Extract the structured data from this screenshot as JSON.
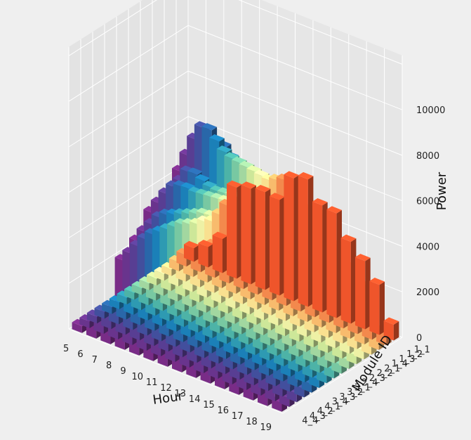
{
  "chart_data": {
    "type": "bar3d",
    "title": "",
    "xlabel": "Hour",
    "ylabel": "Module ID",
    "zlabel": "Power",
    "hours": [
      "5",
      "6",
      "7",
      "8",
      "9",
      "10",
      "11",
      "12",
      "13",
      "14",
      "15",
      "16",
      "17",
      "18",
      "19"
    ],
    "modules": [
      "1_1",
      "1_2",
      "1_3",
      "1_4",
      "2_1",
      "2_2",
      "2_3",
      "2_4",
      "3_1",
      "3_2",
      "3_3",
      "3_4",
      "4_1",
      "4_2",
      "4_3",
      "4_4"
    ],
    "zlim": [
      0,
      10500
    ],
    "zticks": [
      "0",
      "2000",
      "4000",
      "6000",
      "8000",
      "10000"
    ],
    "grid": true,
    "colormap": [
      "#f4572c",
      "#f88c4f",
      "#fdbf6f",
      "#fee593",
      "#f3f6a8",
      "#d1ec9c",
      "#a5dba3",
      "#7acca5",
      "#4fb7aa",
      "#2f9db6",
      "#1c83bc",
      "#2a69ac",
      "#4351a0",
      "#5a3f96",
      "#6b3590",
      "#7b2d8a"
    ],
    "values": [
      [
        600,
        900,
        1500,
        4000,
        4200,
        4300,
        4200,
        5400,
        5600,
        4700,
        4600,
        3600,
        3000,
        2200,
        700
      ],
      [
        500,
        800,
        1400,
        3400,
        3800,
        4000,
        4100,
        5500,
        5500,
        4700,
        4700,
        3600,
        2900,
        2300,
        600
      ],
      [
        400,
        700,
        1300,
        3200,
        3600,
        4200,
        4400,
        5700,
        5600,
        4900,
        4800,
        3700,
        3000,
        2200,
        500
      ],
      [
        300,
        600,
        1200,
        3100,
        3500,
        4300,
        4600,
        5900,
        5800,
        5000,
        4800,
        3600,
        2900,
        2100,
        500
      ],
      [
        300,
        600,
        1200,
        3300,
        3800,
        4600,
        4900,
        6300,
        6100,
        5200,
        5000,
        3700,
        2800,
        2100,
        400
      ],
      [
        300,
        600,
        1200,
        3400,
        4000,
        4900,
        5200,
        6700,
        6500,
        5400,
        5100,
        3800,
        2800,
        2000,
        400
      ],
      [
        300,
        600,
        1300,
        3600,
        4300,
        5200,
        5600,
        7100,
        6900,
        5700,
        5300,
        3900,
        2900,
        2000,
        400
      ],
      [
        300,
        600,
        1300,
        3800,
        4500,
        5500,
        5900,
        7500,
        7200,
        5900,
        5400,
        4000,
        2900,
        1900,
        400
      ],
      [
        300,
        600,
        1300,
        3900,
        4700,
        5800,
        6200,
        7900,
        7500,
        6100,
        5500,
        4100,
        2900,
        1900,
        400
      ],
      [
        300,
        600,
        1300,
        4000,
        4900,
        6100,
        6600,
        8400,
        7900,
        6300,
        5600,
        4200,
        3000,
        1900,
        400
      ],
      [
        300,
        600,
        1400,
        4100,
        5100,
        6500,
        7100,
        9100,
        8600,
        6600,
        5800,
        4300,
        3000,
        1900,
        400
      ],
      [
        300,
        600,
        1400,
        4200,
        5300,
        6800,
        7600,
        9800,
        9300,
        7000,
        6000,
        4400,
        3000,
        1900,
        400
      ],
      [
        300,
        600,
        1400,
        4200,
        5400,
        7000,
        7900,
        10100,
        9600,
        7200,
        6100,
        4400,
        3000,
        1800,
        400
      ],
      [
        300,
        600,
        1400,
        4100,
        5300,
        6900,
        7700,
        9800,
        9300,
        7000,
        6000,
        4300,
        2900,
        1800,
        400
      ],
      [
        300,
        600,
        1400,
        4000,
        5200,
        6700,
        7400,
        9300,
        8800,
        6700,
        5800,
        4200,
        2800,
        1700,
        400
      ],
      [
        300,
        600,
        1400,
        3900,
        5000,
        6500,
        7100,
        8800,
        8400,
        6400,
        5600,
        4100,
        2700,
        1700,
        400
      ]
    ]
  }
}
